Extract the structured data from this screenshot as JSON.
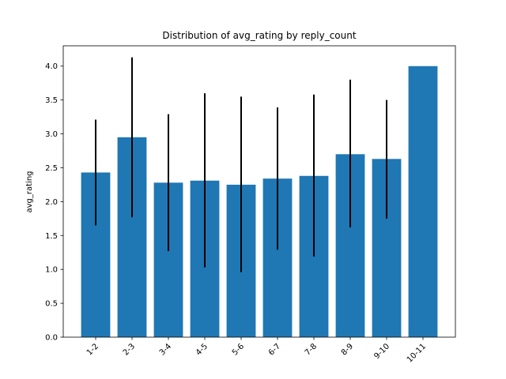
{
  "chart_data": {
    "type": "bar",
    "title": "Distribution of avg_rating by reply_count",
    "xlabel": "",
    "ylabel": "avg_rating",
    "categories": [
      "1-2",
      "2-3",
      "3-4",
      "4-5",
      "5-6",
      "6-7",
      "7-8",
      "8-9",
      "9-10",
      "10-11"
    ],
    "values": [
      2.43,
      2.95,
      2.28,
      2.31,
      2.25,
      2.34,
      2.38,
      2.7,
      2.63,
      4.0
    ],
    "error_low": [
      1.65,
      1.77,
      1.27,
      1.03,
      0.96,
      1.29,
      1.19,
      1.62,
      1.75,
      4.0
    ],
    "error_high": [
      3.21,
      4.13,
      3.29,
      3.6,
      3.55,
      3.39,
      3.58,
      3.8,
      3.5,
      4.0
    ],
    "ylim": [
      0,
      4.3
    ],
    "yticks": [
      "0.0",
      "0.5",
      "1.0",
      "1.5",
      "2.0",
      "2.5",
      "3.0",
      "3.5",
      "4.0"
    ],
    "bar_color": "#1f77b4",
    "error_color": "#000000",
    "grid": false,
    "legend": "none"
  }
}
